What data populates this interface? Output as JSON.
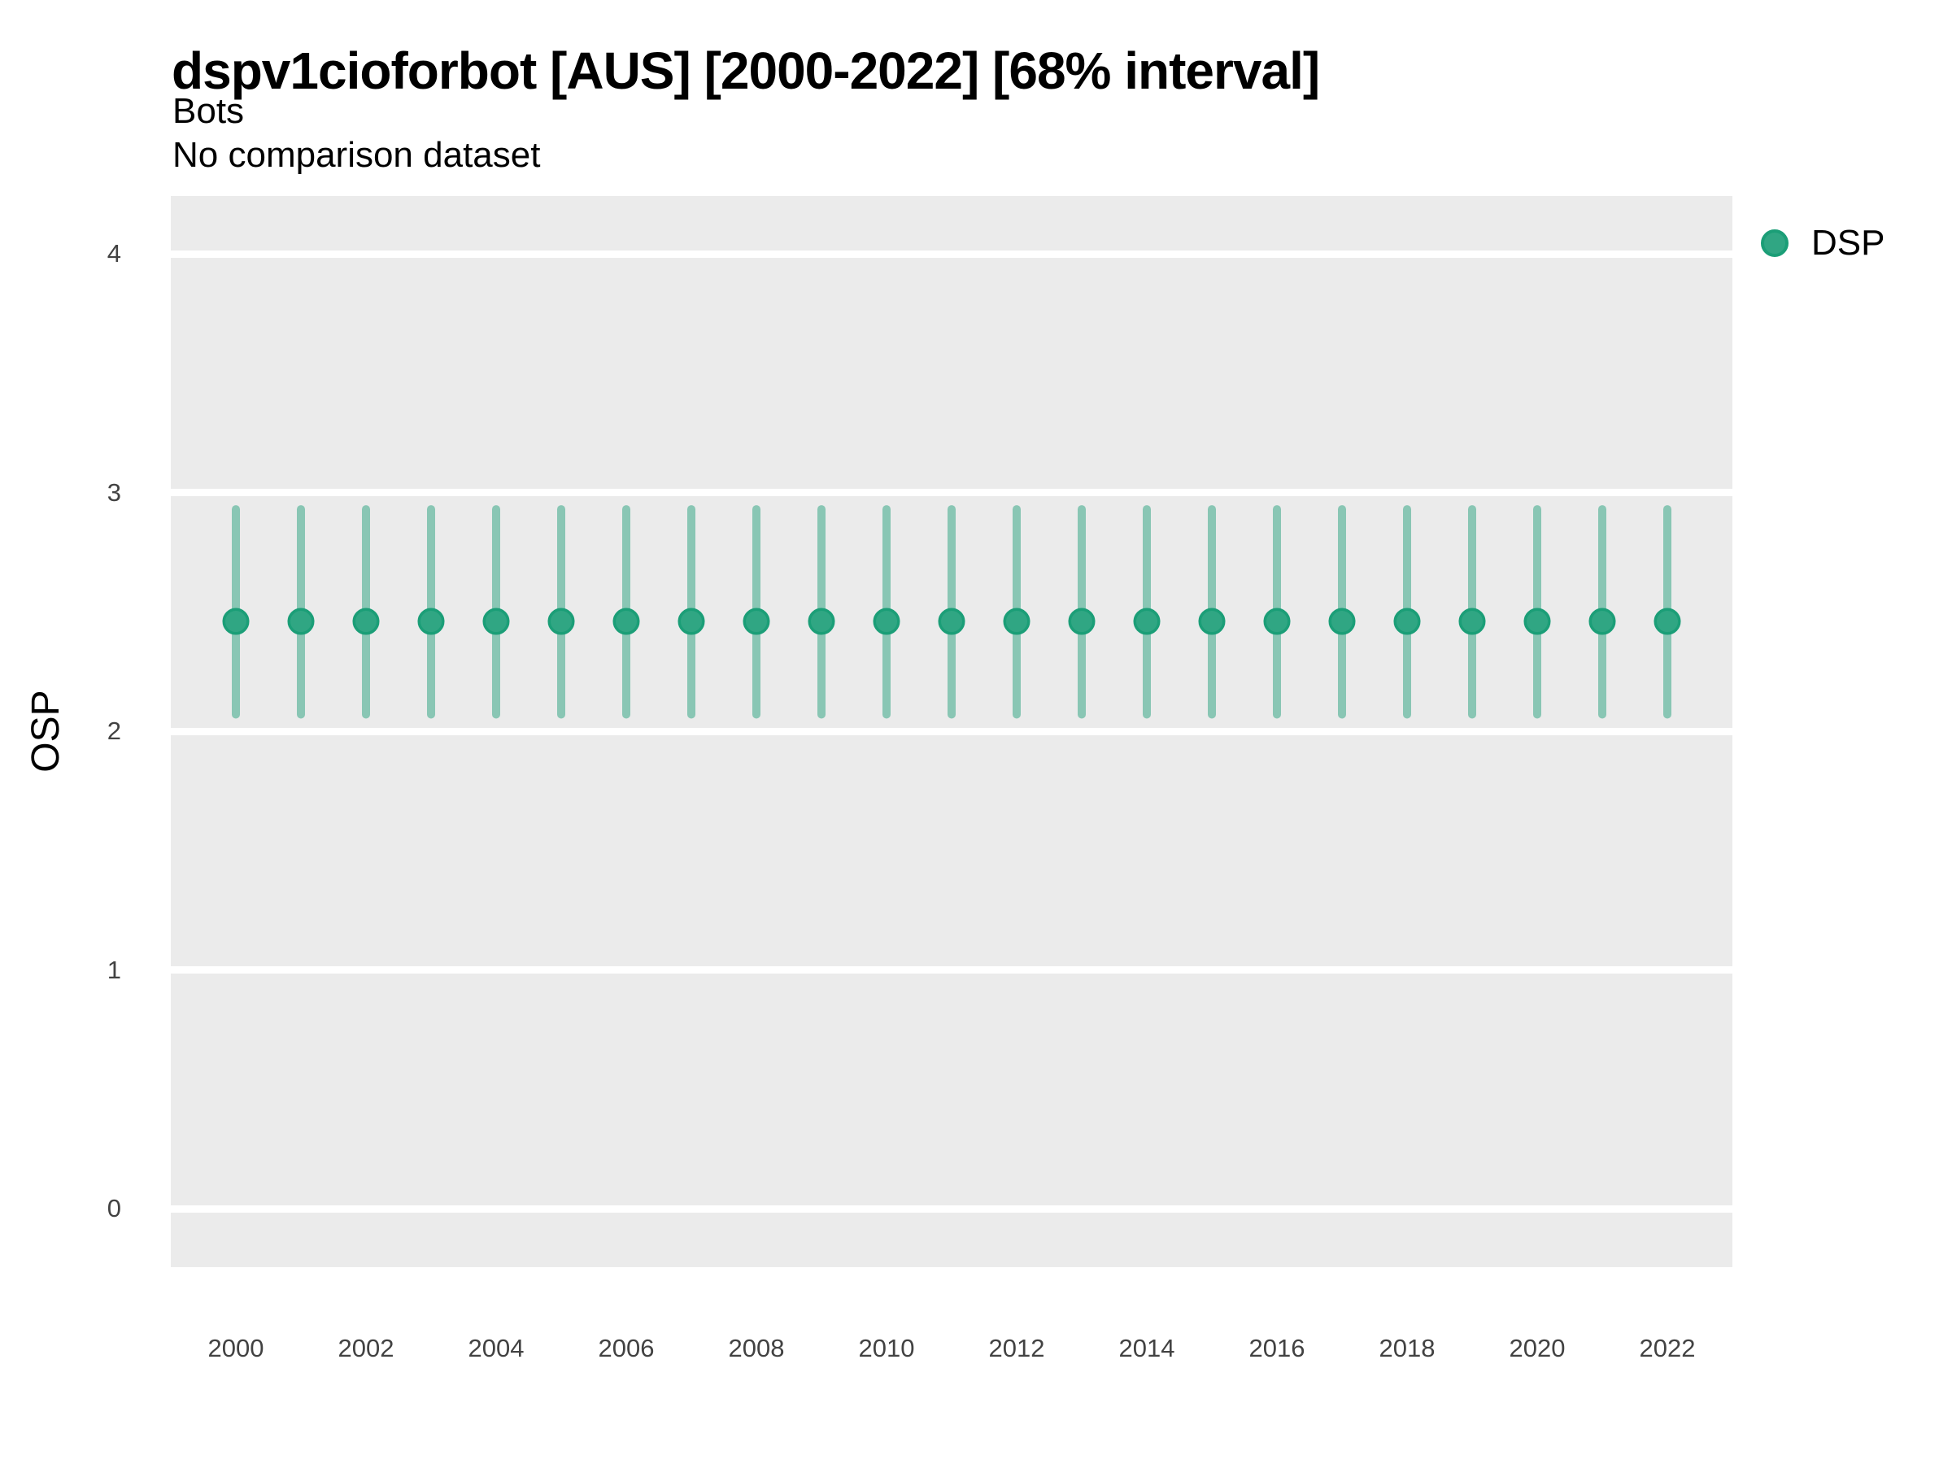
{
  "chart_data": {
    "type": "scatter",
    "title": "dspv1cioforbot [AUS] [2000-2022] [68% interval]",
    "subtitle": "Bots",
    "subtitle2": "No comparison dataset",
    "xlabel": "",
    "ylabel": "OSP",
    "legend": {
      "position": "right-top",
      "entries": [
        {
          "label": "DSP",
          "marker": "circle-icon",
          "color": "#1B9E77"
        }
      ]
    },
    "x": [
      2000,
      2001,
      2002,
      2003,
      2004,
      2005,
      2006,
      2007,
      2008,
      2009,
      2010,
      2011,
      2012,
      2013,
      2014,
      2015,
      2016,
      2017,
      2018,
      2019,
      2020,
      2021,
      2022
    ],
    "series": [
      {
        "name": "DSP",
        "mean": [
          2.46,
          2.46,
          2.46,
          2.46,
          2.46,
          2.46,
          2.46,
          2.46,
          2.46,
          2.46,
          2.46,
          2.46,
          2.46,
          2.46,
          2.46,
          2.46,
          2.46,
          2.46,
          2.46,
          2.46,
          2.46,
          2.46,
          2.46
        ],
        "lower": [
          2.07,
          2.07,
          2.07,
          2.07,
          2.07,
          2.07,
          2.07,
          2.07,
          2.07,
          2.07,
          2.07,
          2.07,
          2.07,
          2.07,
          2.07,
          2.07,
          2.07,
          2.07,
          2.07,
          2.07,
          2.07,
          2.07,
          2.07
        ],
        "upper": [
          2.93,
          2.93,
          2.93,
          2.93,
          2.93,
          2.93,
          2.93,
          2.93,
          2.93,
          2.93,
          2.93,
          2.93,
          2.93,
          2.93,
          2.93,
          2.93,
          2.93,
          2.93,
          2.93,
          2.93,
          2.93,
          2.93,
          2.93
        ]
      }
    ],
    "yticks": [
      0,
      1,
      2,
      3,
      4
    ],
    "xticks": [
      2000,
      2002,
      2004,
      2006,
      2008,
      2010,
      2012,
      2014,
      2016,
      2018,
      2020,
      2022
    ],
    "ylim": [
      -0.245,
      4.242
    ],
    "xlim": [
      1999,
      2023
    ],
    "grid": "horizontal major gridlines only, white on gray panel",
    "colors": {
      "point_fill": "#30A683",
      "point_stroke": "#1B9E77",
      "errorbar": "rgba(27,158,119,0.47)",
      "panel_bg": "#EBEBEB",
      "gridline": "#FFFFFF",
      "tick_text": "#424242"
    }
  }
}
